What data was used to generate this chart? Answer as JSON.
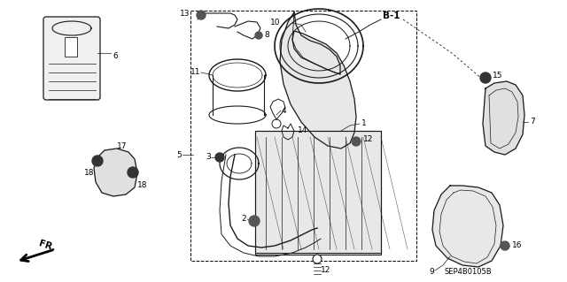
{
  "bg_color": "#ffffff",
  "diagram_code": "SEP4B0105B",
  "line_color": "#1a1a1a",
  "fig_width": 6.4,
  "fig_height": 3.19,
  "dpi": 100,
  "imgW": 640,
  "imgH": 319
}
